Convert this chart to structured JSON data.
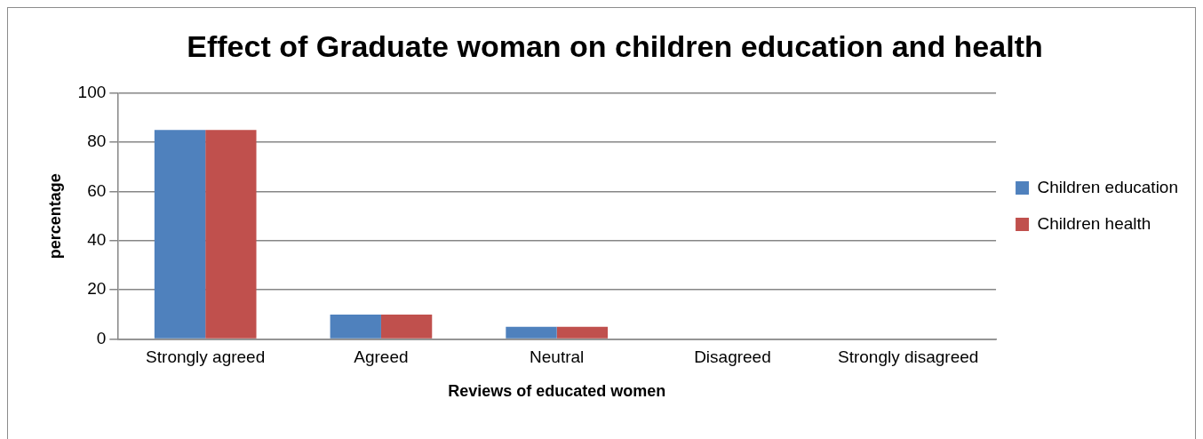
{
  "chart_data": {
    "type": "bar",
    "title": "Effect of Graduate woman on children education and health",
    "xlabel": "Reviews of educated women",
    "ylabel": "percentage",
    "categories": [
      "Strongly agreed",
      "Agreed",
      "Neutral",
      "Disagreed",
      "Strongly disagreed"
    ],
    "series": [
      {
        "name": "Children education",
        "color": "#4f81bd",
        "values": [
          85,
          10,
          5,
          0,
          0
        ]
      },
      {
        "name": "Children health",
        "color": "#c0504d",
        "values": [
          85,
          10,
          5,
          0,
          0
        ]
      }
    ],
    "ylim": [
      0,
      100
    ],
    "yticks": [
      0,
      20,
      40,
      60,
      80,
      100
    ],
    "grid": "y",
    "legend": "right"
  }
}
